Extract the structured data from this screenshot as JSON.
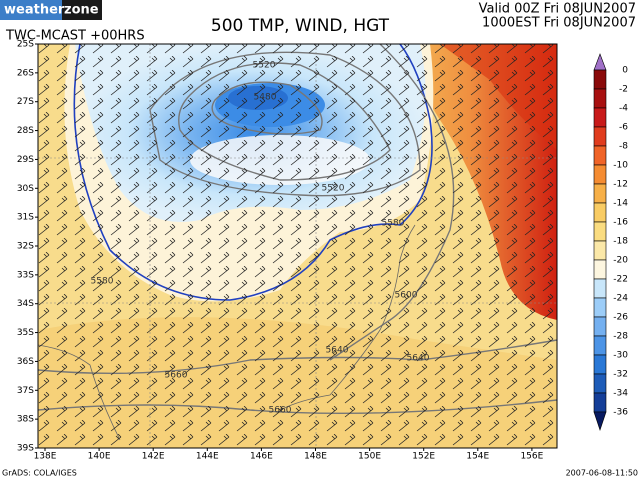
{
  "header": {
    "logo": [
      "weather",
      "zone"
    ],
    "title": "500 TMP, WIND, HGT",
    "model": "TWC-MCAST +00HRS",
    "valid": "Valid 00Z Fri 08JUN2007",
    "local": "1000EST Fri 08JUN2007"
  },
  "map": {
    "latitudes": [
      "25S",
      "26S",
      "27S",
      "28S",
      "29S",
      "30S",
      "31S",
      "32S",
      "33S",
      "34S",
      "35S",
      "36S",
      "37S",
      "38S",
      "39S"
    ],
    "longitudes": [
      "138E",
      "140E",
      "142E",
      "144E",
      "146E",
      "148E",
      "150E",
      "152E",
      "154E",
      "156E"
    ],
    "contour_labels": [
      "5520",
      "5480",
      "5520",
      "5580",
      "5580",
      "5600",
      "5640",
      "5640",
      "5660",
      "5660"
    ]
  },
  "colorbar": {
    "labels": [
      0,
      -2,
      -4,
      -6,
      -8,
      -10,
      -12,
      -14,
      -16,
      -18,
      -20,
      -22,
      -24,
      -26,
      -28,
      -30,
      -32,
      -34,
      -36
    ]
  },
  "footer": {
    "left": "GrADS: COLA/IGES",
    "right": "2007-06-08-11:50"
  }
}
